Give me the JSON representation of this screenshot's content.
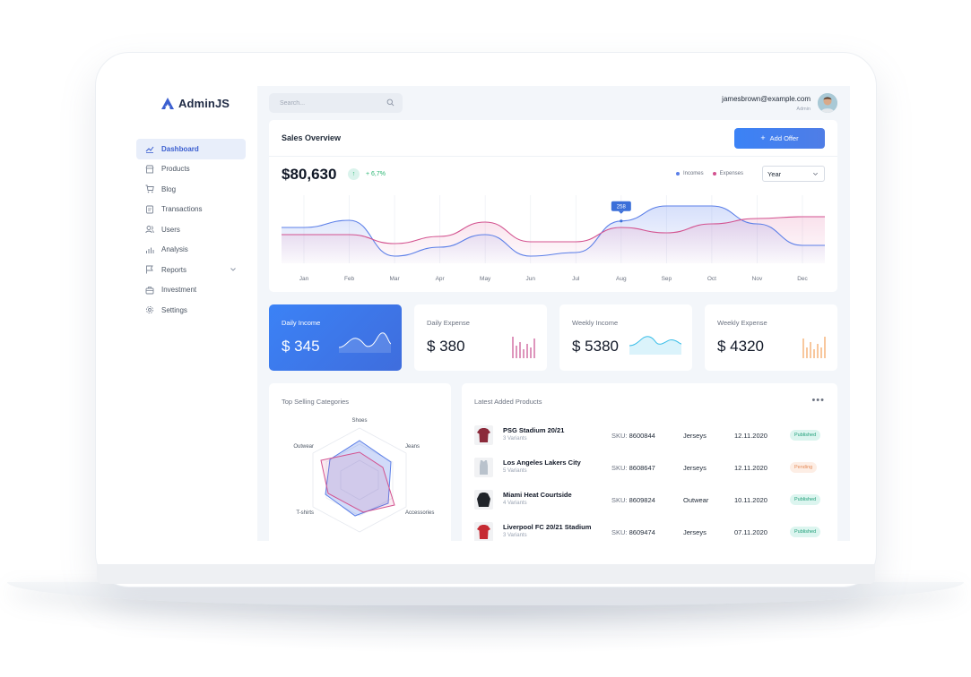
{
  "app": {
    "brand": "AdminJS"
  },
  "search": {
    "placeholder": "Search..."
  },
  "user": {
    "email": "jamesbrown@example.com",
    "role": "Admin"
  },
  "sidebar": {
    "items": [
      {
        "label": "Dashboard",
        "icon": "chart-icon",
        "active": true
      },
      {
        "label": "Products",
        "icon": "store-icon"
      },
      {
        "label": "Blog",
        "icon": "cart-icon"
      },
      {
        "label": "Transactions",
        "icon": "document-icon"
      },
      {
        "label": "Users",
        "icon": "users-icon"
      },
      {
        "label": "Analysis",
        "icon": "bar-chart-icon"
      },
      {
        "label": "Reports",
        "icon": "flag-icon",
        "expandable": true
      },
      {
        "label": "Investment",
        "icon": "briefcase-icon"
      },
      {
        "label": "Settings",
        "icon": "gear-icon"
      }
    ]
  },
  "sales": {
    "title": "Sales Overview",
    "add_offer_label": "Add Offer",
    "total": "$80,630",
    "trend": "+ 6,7%",
    "legend": {
      "incomes": "Incomes",
      "expenses": "Expenses"
    },
    "period": "Year",
    "tooltip": "258"
  },
  "chart_data": {
    "type": "line",
    "categories": [
      "Jan",
      "Feb",
      "Mar",
      "Apr",
      "May",
      "Jun",
      "Jul",
      "Aug",
      "Sep",
      "Oct",
      "Nov",
      "Dec"
    ],
    "series": [
      {
        "name": "Incomes",
        "color": "#5b7fe8",
        "values": [
          240,
          260,
          160,
          185,
          220,
          160,
          170,
          258,
          300,
          300,
          250,
          190
        ]
      },
      {
        "name": "Expenses",
        "color": "#d3528f",
        "values": [
          220,
          220,
          195,
          215,
          255,
          200,
          200,
          240,
          225,
          250,
          265,
          270
        ]
      }
    ],
    "ylim": [
      140,
      330
    ]
  },
  "stats": [
    {
      "title": "Daily Income",
      "value": "$ 345"
    },
    {
      "title": "Daily Expense",
      "value": "$ 380"
    },
    {
      "title": "Weekly Income",
      "value": "$ 5380"
    },
    {
      "title": "Weekly Expense",
      "value": "$ 4320"
    }
  ],
  "categories": {
    "title": "Top Selling Categories",
    "labels": [
      "Shoes",
      "Jeans",
      "Accessories",
      "T-shirts",
      "Outwear"
    ]
  },
  "products": {
    "title": "Latest Added Products",
    "sku_label": "SKU:",
    "rows": [
      {
        "name": "PSG Stadium 20/21",
        "variants": "3 Variants",
        "sku": "8600844",
        "category": "Jerseys",
        "date": "12.11.2020",
        "status": "Published",
        "color": "#8b2a3a"
      },
      {
        "name": "Los Angeles Lakers City",
        "variants": "5 Variants",
        "sku": "8608647",
        "category": "Jerseys",
        "date": "12.11.2020",
        "status": "Pending",
        "color": "#b9c2cc"
      },
      {
        "name": "Miami Heat Courtside",
        "variants": "4 Variants",
        "sku": "8609824",
        "category": "Outwear",
        "date": "10.11.2020",
        "status": "Published",
        "color": "#1f2329"
      },
      {
        "name": "Liverpool FC 20/21 Stadium",
        "variants": "3 Variants",
        "sku": "8609474",
        "category": "Jerseys",
        "date": "07.11.2020",
        "status": "Published",
        "color": "#c62b33"
      }
    ]
  }
}
